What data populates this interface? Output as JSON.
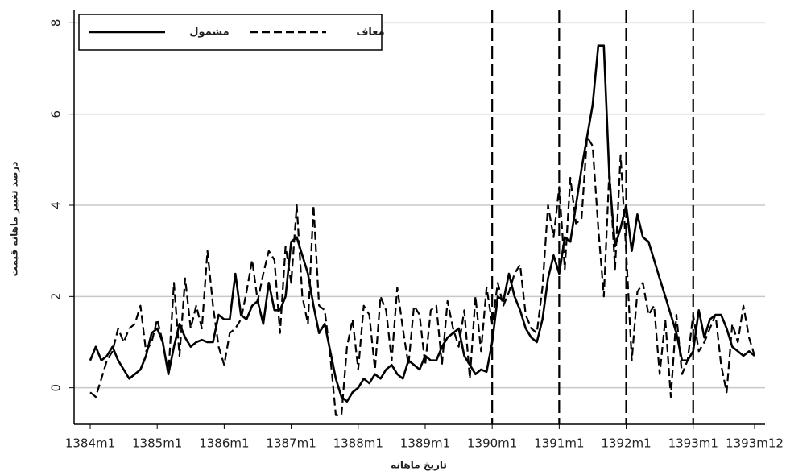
{
  "chart_data": {
    "type": "line",
    "y_label": "درصد تغییر ماهانه قیمت",
    "x_label": "تاریخ ماهانه",
    "categories": [
      "1384m1",
      null,
      null,
      null,
      null,
      null,
      null,
      null,
      null,
      null,
      null,
      null,
      "1385m1",
      null,
      null,
      null,
      null,
      null,
      null,
      null,
      null,
      null,
      null,
      null,
      "1386m1",
      null,
      null,
      null,
      null,
      null,
      null,
      null,
      null,
      null,
      null,
      null,
      "1387m1",
      null,
      null,
      null,
      null,
      null,
      null,
      null,
      null,
      null,
      null,
      null,
      "1388m1",
      null,
      null,
      null,
      null,
      null,
      null,
      null,
      null,
      null,
      null,
      null,
      "1389m1",
      null,
      null,
      null,
      null,
      null,
      null,
      null,
      null,
      null,
      null,
      null,
      "1390m1",
      null,
      null,
      null,
      null,
      null,
      null,
      null,
      null,
      null,
      null,
      null,
      "1391m1",
      null,
      null,
      null,
      null,
      null,
      null,
      null,
      null,
      null,
      null,
      null,
      "1392m1",
      null,
      null,
      null,
      null,
      null,
      null,
      null,
      null,
      null,
      null,
      null,
      "1393m1",
      null,
      null,
      null,
      null,
      null,
      null,
      null,
      null,
      null,
      null,
      "1393m12"
    ],
    "series": [
      {
        "name": "مشمول",
        "color": "#000000",
        "dash": false,
        "values": [
          0.6,
          0.9,
          0.6,
          0.7,
          0.9,
          0.6,
          0.4,
          0.2,
          0.3,
          0.4,
          0.7,
          1.2,
          1.3,
          1.0,
          0.3,
          0.9,
          1.4,
          1.1,
          0.9,
          1.0,
          1.05,
          1.0,
          1.0,
          1.6,
          1.5,
          1.5,
          2.5,
          1.6,
          1.5,
          1.8,
          1.9,
          1.4,
          2.3,
          1.7,
          1.7,
          2.0,
          3.2,
          3.3,
          2.9,
          2.5,
          1.8,
          1.2,
          1.4,
          0.8,
          0.2,
          -0.2,
          -0.3,
          -0.1,
          0.0,
          0.2,
          0.1,
          0.3,
          0.2,
          0.4,
          0.5,
          0.3,
          0.2,
          0.6,
          0.5,
          0.4,
          0.7,
          0.6,
          0.6,
          0.9,
          1.1,
          1.2,
          1.3,
          0.7,
          0.5,
          0.3,
          0.4,
          0.35,
          1.0,
          2.0,
          1.9,
          2.5,
          2.0,
          1.7,
          1.3,
          1.1,
          1.0,
          1.5,
          2.4,
          2.9,
          2.5,
          3.3,
          3.2,
          4.0,
          4.8,
          5.5,
          6.2,
          7.5,
          7.5,
          4.6,
          3.1,
          3.5,
          4.0,
          3.0,
          3.8,
          3.3,
          3.2,
          2.8,
          2.4,
          2.0,
          1.6,
          1.2,
          0.6,
          0.6,
          0.8,
          1.7,
          1.1,
          1.5,
          1.6,
          1.6,
          1.3,
          0.9,
          0.8,
          0.7,
          0.8,
          0.7
        ]
      },
      {
        "name": "معاف",
        "color": "#000000",
        "dash": true,
        "values": [
          -0.1,
          -0.2,
          0.2,
          0.6,
          0.8,
          1.3,
          1.0,
          1.3,
          1.4,
          1.8,
          0.8,
          1.0,
          1.5,
          1.0,
          0.3,
          2.3,
          0.7,
          2.4,
          1.3,
          1.8,
          1.3,
          3.0,
          1.8,
          0.9,
          0.5,
          1.2,
          1.3,
          1.5,
          2.1,
          2.8,
          1.9,
          2.5,
          3.0,
          2.8,
          1.2,
          3.1,
          2.3,
          4.0,
          2.0,
          1.4,
          4.0,
          1.8,
          1.7,
          0.7,
          -0.6,
          -0.6,
          0.9,
          1.5,
          0.4,
          1.8,
          1.6,
          0.4,
          2.0,
          1.7,
          0.6,
          2.2,
          1.3,
          0.5,
          1.8,
          1.6,
          0.5,
          1.7,
          1.8,
          0.5,
          1.9,
          1.3,
          0.9,
          1.7,
          0.2,
          2.0,
          0.8,
          2.2,
          1.4,
          2.3,
          1.8,
          2.1,
          2.5,
          2.7,
          1.6,
          1.3,
          1.2,
          2.2,
          4.0,
          3.3,
          4.4,
          2.6,
          4.6,
          3.6,
          3.7,
          5.5,
          5.3,
          3.5,
          2.0,
          4.8,
          2.6,
          5.1,
          3.0,
          0.6,
          2.1,
          2.3,
          1.6,
          1.8,
          0.3,
          1.5,
          -0.2,
          1.6,
          0.3,
          0.6,
          1.6,
          0.8,
          1.0,
          1.3,
          1.6,
          0.5,
          -0.1,
          1.4,
          1.0,
          1.8,
          1.1,
          0.7
        ]
      }
    ],
    "reference_lines": [
      "1390m1",
      "1391m1",
      "1392m1",
      "1393m1"
    ],
    "ylim": [
      -0.8,
      8.2
    ],
    "yticks": [
      0,
      2,
      4,
      6,
      8
    ],
    "grid": true,
    "legend": "top-left"
  }
}
